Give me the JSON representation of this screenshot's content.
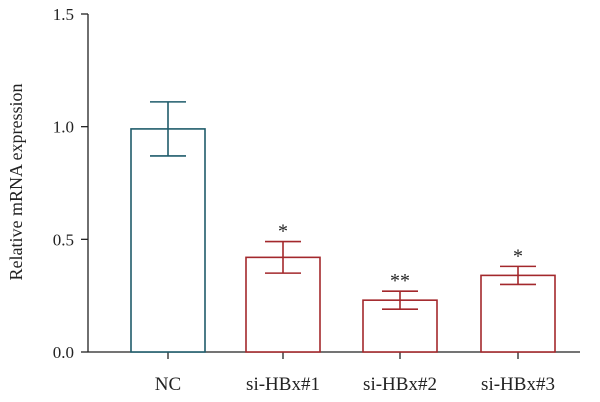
{
  "chart_data": {
    "type": "bar",
    "title": "",
    "xlabel": "",
    "ylabel": "Relative mRNA expression",
    "ylim": [
      0,
      1.5
    ],
    "yticks": [
      0.0,
      0.5,
      1.0,
      1.5
    ],
    "ytick_labels": [
      "0.0",
      "0.5",
      "1.0",
      "1.5"
    ],
    "categories": [
      "NC",
      "si-HBx#1",
      "si-HBx#2",
      "si-HBx#3"
    ],
    "values": [
      0.99,
      0.42,
      0.23,
      0.34
    ],
    "errors": [
      0.12,
      0.07,
      0.04,
      0.04
    ],
    "significance": [
      "",
      "*",
      "**",
      "*"
    ],
    "colors": [
      "#1f5c6b",
      "#a3282c",
      "#a3282c",
      "#a3282c"
    ],
    "grid": false,
    "legend": "none"
  }
}
